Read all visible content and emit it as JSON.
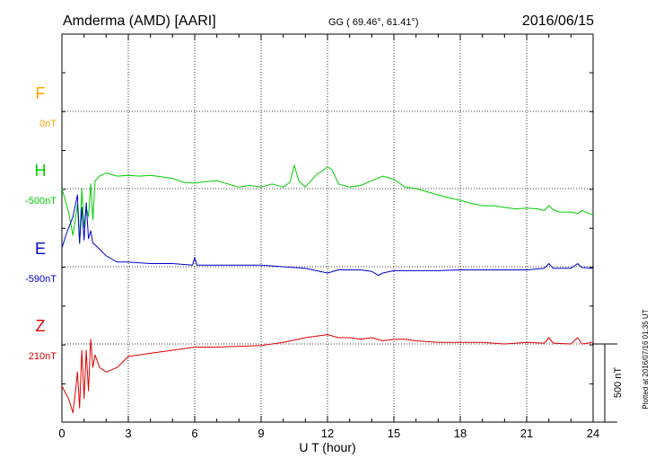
{
  "header": {
    "station": "Amderma (AMD)  [AARI]",
    "coords": "GG ( 69.46°,  61.41°)",
    "date": "2016/06/15"
  },
  "side_note": "Plotted at 2016/07/16 01:35 UT",
  "scale_label": "500 nT",
  "chart_data": {
    "type": "line",
    "xlabel": "U T (hour)",
    "xlim": [
      0,
      24
    ],
    "x_ticks": [
      "0",
      "3",
      "6",
      "9",
      "12",
      "15",
      "18",
      "21",
      "24"
    ],
    "grid": true,
    "scale_nT": 500,
    "colors": {
      "F": "#ffa500",
      "H": "#00cc00",
      "E": "#0000cc",
      "Z": "#dd0000"
    },
    "series": [
      {
        "name": "F",
        "baseline_label": "0nT",
        "x": [],
        "y": []
      },
      {
        "name": "H",
        "baseline_label": "-500nT",
        "x": [
          0,
          0.3,
          0.5,
          0.7,
          0.8,
          0.9,
          1.0,
          1.1,
          1.2,
          1.3,
          1.4,
          1.5,
          1.7,
          2.0,
          2.5,
          3.0,
          3.5,
          4.0,
          4.5,
          5.0,
          5.5,
          6.0,
          6.5,
          7.0,
          7.5,
          8.0,
          8.5,
          9.0,
          9.5,
          10.0,
          10.3,
          10.5,
          10.7,
          11.0,
          11.5,
          11.8,
          12.0,
          12.2,
          12.5,
          13.0,
          13.5,
          14.0,
          14.5,
          15.0,
          15.5,
          16.0,
          16.5,
          17.0,
          17.5,
          18.0,
          18.5,
          19.0,
          19.5,
          20.0,
          20.5,
          21.0,
          21.5,
          21.8,
          22.0,
          22.2,
          22.5,
          23.0,
          23.3,
          23.5,
          24.0
        ],
        "y": [
          0,
          -150,
          -300,
          -100,
          -350,
          0,
          -250,
          -120,
          -180,
          30,
          -200,
          50,
          80,
          100,
          80,
          85,
          80,
          85,
          75,
          65,
          40,
          35,
          45,
          50,
          30,
          10,
          20,
          10,
          30,
          10,
          40,
          150,
          50,
          10,
          90,
          115,
          140,
          120,
          30,
          10,
          20,
          50,
          80,
          60,
          10,
          0,
          -20,
          -40,
          -60,
          -75,
          -95,
          -110,
          -110,
          -120,
          -130,
          -125,
          -130,
          -140,
          -110,
          -135,
          -150,
          -150,
          -160,
          -140,
          -170
        ]
      },
      {
        "name": "E",
        "baseline_label": "-590nT",
        "x": [
          0,
          0.2,
          0.5,
          0.7,
          0.8,
          0.9,
          1.0,
          1.1,
          1.2,
          1.3,
          1.4,
          1.5,
          2.0,
          2.5,
          3.0,
          4.0,
          5.0,
          5.9,
          6.0,
          6.1,
          7.0,
          8.0,
          9.0,
          10.0,
          11.0,
          12.0,
          12.5,
          13.0,
          13.5,
          14.0,
          14.3,
          14.5,
          15.0,
          16.0,
          17.0,
          18.0,
          19.0,
          20.0,
          21.0,
          21.8,
          22.0,
          22.2,
          23.0,
          23.3,
          23.5,
          24.0
        ],
        "y": [
          120,
          210,
          320,
          460,
          150,
          380,
          170,
          410,
          180,
          230,
          150,
          140,
          70,
          30,
          30,
          20,
          20,
          10,
          60,
          10,
          10,
          10,
          10,
          0,
          -10,
          -40,
          -20,
          -20,
          -20,
          -30,
          -55,
          -40,
          -25,
          -25,
          -25,
          -20,
          -20,
          -20,
          -20,
          -10,
          20,
          -10,
          -10,
          20,
          -5,
          -10
        ]
      },
      {
        "name": "Z",
        "baseline_label": "210nT",
        "x": [
          0,
          0.3,
          0.5,
          0.6,
          0.7,
          0.8,
          0.9,
          1.0,
          1.1,
          1.2,
          1.3,
          1.4,
          1.5,
          1.7,
          2.0,
          2.5,
          3.0,
          4.0,
          5.0,
          6.0,
          7.0,
          8.0,
          9.0,
          10.0,
          11.0,
          12.0,
          12.5,
          13.0,
          13.5,
          14.0,
          14.5,
          15.0,
          15.5,
          16.0,
          17.0,
          18.0,
          19.0,
          20.0,
          21.0,
          21.8,
          22.0,
          22.2,
          23.0,
          23.3,
          23.5,
          24.0
        ],
        "y": [
          -270,
          -350,
          -440,
          -320,
          -180,
          -410,
          -40,
          -350,
          -40,
          -300,
          30,
          -150,
          -70,
          -150,
          -180,
          -150,
          -80,
          -60,
          -40,
          -20,
          -20,
          -15,
          -10,
          10,
          40,
          60,
          40,
          40,
          30,
          40,
          20,
          30,
          30,
          20,
          10,
          10,
          10,
          0,
          10,
          5,
          40,
          5,
          0,
          40,
          0,
          10
        ]
      }
    ]
  }
}
